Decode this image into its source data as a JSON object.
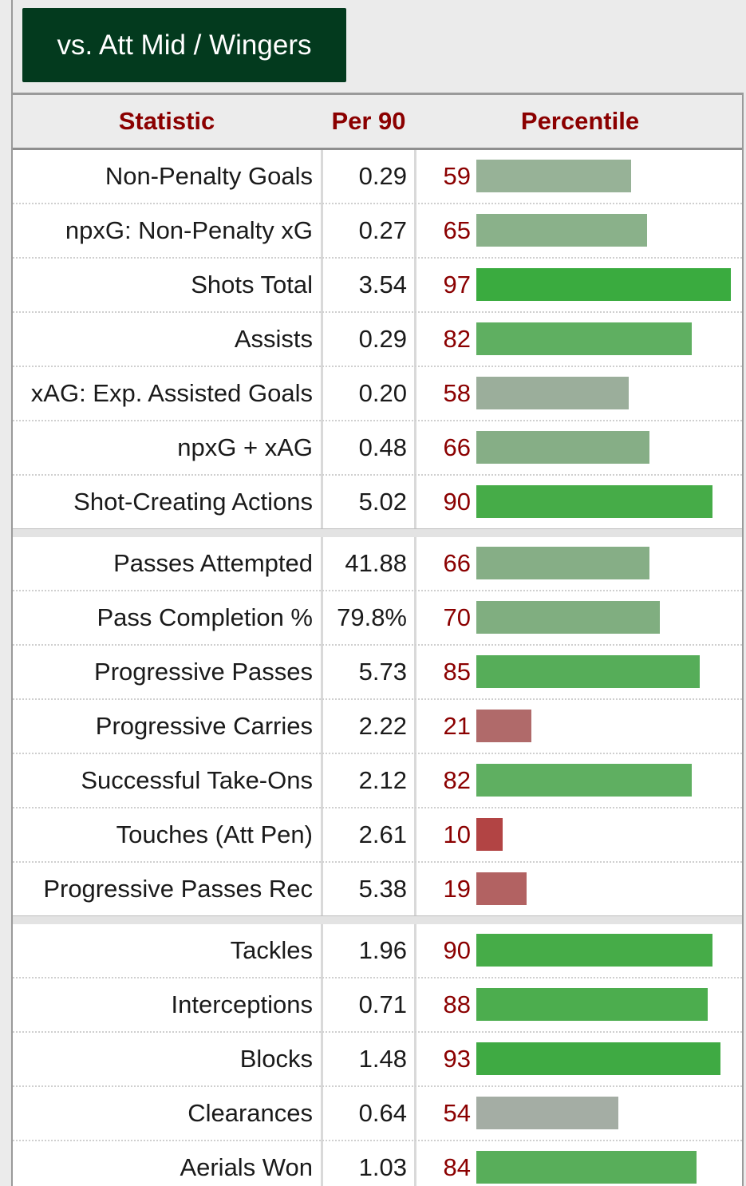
{
  "tab_label": "vs. Att Mid / Wingers",
  "headers": {
    "statistic": "Statistic",
    "per90": "Per 90",
    "percentile": "Percentile"
  },
  "colors": {
    "header_text": "#8b0000",
    "tab_bg": "#033a1e",
    "bar_high": "#3fae46",
    "bar_mid": "#5aad60",
    "bar_neutral": "#9bae9b",
    "bar_low": "#b06868",
    "bar_very_low": "#b04040"
  },
  "groups": [
    {
      "rows": [
        {
          "stat": "Non-Penalty Goals",
          "per90": "0.29",
          "percentile": 59,
          "color": "#97b297"
        },
        {
          "stat": "npxG: Non-Penalty xG",
          "per90": "0.27",
          "percentile": 65,
          "color": "#8ab18a"
        },
        {
          "stat": "Shots Total",
          "per90": "3.54",
          "percentile": 97,
          "color": "#3aab3f"
        },
        {
          "stat": "Assists",
          "per90": "0.29",
          "percentile": 82,
          "color": "#5faf61"
        },
        {
          "stat": "xAG: Exp. Assisted Goals",
          "per90": "0.20",
          "percentile": 58,
          "color": "#9bae9b"
        },
        {
          "stat": "npxG + xAG",
          "per90": "0.48",
          "percentile": 66,
          "color": "#86ae86"
        },
        {
          "stat": "Shot-Creating Actions",
          "per90": "5.02",
          "percentile": 90,
          "color": "#46ac48"
        }
      ]
    },
    {
      "rows": [
        {
          "stat": "Passes Attempted",
          "per90": "41.88",
          "percentile": 66,
          "color": "#86ae86"
        },
        {
          "stat": "Pass Completion %",
          "per90": "79.8%",
          "percentile": 70,
          "color": "#80ae80"
        },
        {
          "stat": "Progressive Passes",
          "per90": "5.73",
          "percentile": 85,
          "color": "#56ad59"
        },
        {
          "stat": "Progressive Carries",
          "per90": "2.22",
          "percentile": 21,
          "color": "#b06a6a"
        },
        {
          "stat": "Successful Take-Ons",
          "per90": "2.12",
          "percentile": 82,
          "color": "#5faf61"
        },
        {
          "stat": "Touches (Att Pen)",
          "per90": "2.61",
          "percentile": 10,
          "color": "#b24444"
        },
        {
          "stat": "Progressive Passes Rec",
          "per90": "5.38",
          "percentile": 19,
          "color": "#b26262"
        }
      ]
    },
    {
      "rows": [
        {
          "stat": "Tackles",
          "per90": "1.96",
          "percentile": 90,
          "color": "#46ac48"
        },
        {
          "stat": "Interceptions",
          "per90": "0.71",
          "percentile": 88,
          "color": "#4cad4e"
        },
        {
          "stat": "Blocks",
          "per90": "1.48",
          "percentile": 93,
          "color": "#3faa43"
        },
        {
          "stat": "Clearances",
          "per90": "0.64",
          "percentile": 54,
          "color": "#a4ada4"
        },
        {
          "stat": "Aerials Won",
          "per90": "1.03",
          "percentile": 84,
          "color": "#58ae5a"
        }
      ]
    }
  ]
}
